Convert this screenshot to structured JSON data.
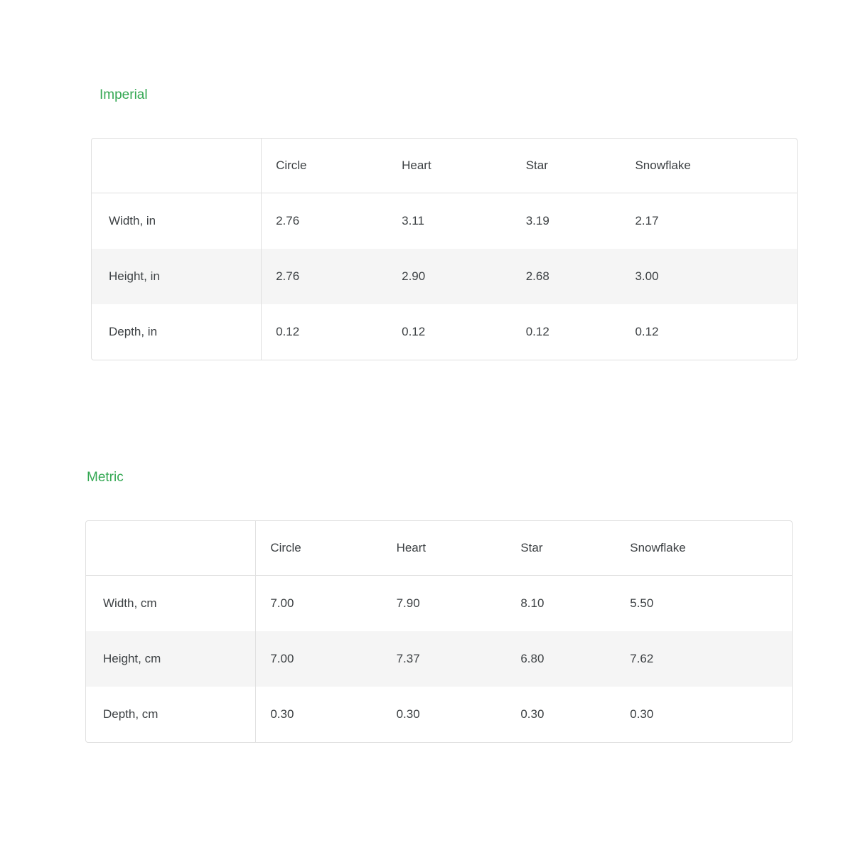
{
  "page": {
    "background": "#ffffff"
  },
  "colors": {
    "title_green": "#34a853",
    "table_border": "#e0e0e0",
    "zebra_row_background": "#f5f5f5",
    "text": "#3c4043"
  },
  "sections": [
    {
      "title": "Imperial",
      "table": {
        "columns": [
          "",
          "Circle",
          "Heart",
          "Star",
          "Snowflake"
        ],
        "rows": [
          {
            "label": "Width, in",
            "values": [
              "2.76",
              "3.11",
              "3.19",
              "2.17"
            ],
            "shaded": false
          },
          {
            "label": "Height, in",
            "values": [
              "2.76",
              "2.90",
              "2.68",
              "3.00"
            ],
            "shaded": true
          },
          {
            "label": "Depth, in",
            "values": [
              "0.12",
              "0.12",
              "0.12",
              "0.12"
            ],
            "shaded": false
          }
        ]
      }
    },
    {
      "title": "Metric",
      "table": {
        "columns": [
          "",
          "Circle",
          "Heart",
          "Star",
          "Snowflake"
        ],
        "rows": [
          {
            "label": "Width, cm",
            "values": [
              "7.00",
              "7.90",
              "8.10",
              "5.50"
            ],
            "shaded": false
          },
          {
            "label": "Height, cm",
            "values": [
              "7.00",
              "7.37",
              "6.80",
              "7.62"
            ],
            "shaded": true
          },
          {
            "label": "Depth, cm",
            "values": [
              "0.30",
              "0.30",
              "0.30",
              "0.30"
            ],
            "shaded": false
          }
        ]
      }
    }
  ]
}
